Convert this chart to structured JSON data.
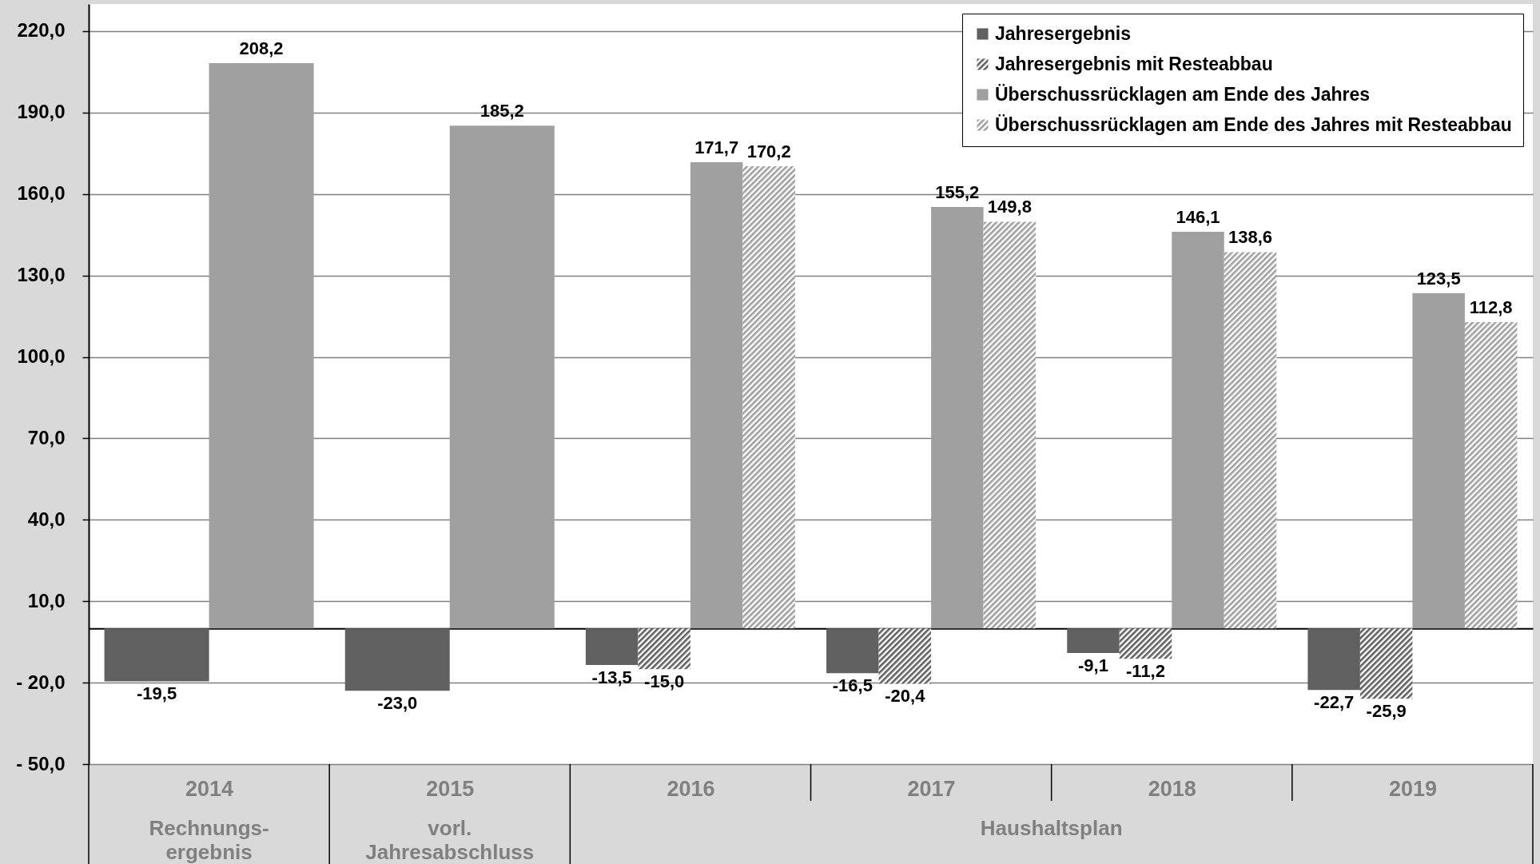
{
  "chart_data": {
    "type": "bar",
    "categories": [
      "2014",
      "2015",
      "2016",
      "2017",
      "2018",
      "2019"
    ],
    "series": [
      {
        "name": "Jahresergebnis",
        "color": "#606060",
        "values": [
          -19.5,
          -23.0,
          -13.5,
          -16.5,
          -9.1,
          -22.7
        ],
        "value_labels": [
          "-19,5",
          "-23,0",
          "-13,5",
          "-16,5",
          "-9,1",
          "-22,7"
        ]
      },
      {
        "name": "Jahresergebnis mit Resteabbau",
        "color": "#606060",
        "values": [
          null,
          null,
          -15.0,
          -20.4,
          -11.2,
          -25.9
        ],
        "value_labels": [
          null,
          null,
          "-15,0",
          "-20,4",
          "-11,2",
          "-25,9"
        ]
      },
      {
        "name": "Überschussrücklagen am Ende des Jahres",
        "color": "#a0a0a0",
        "values": [
          208.2,
          185.2,
          171.7,
          155.2,
          146.1,
          123.5
        ],
        "value_labels": [
          "208,2",
          "185,2",
          "171,7",
          "155,2",
          "146,1",
          "123,5"
        ]
      },
      {
        "name": "Überschussrücklagen am Ende des Jahres mit Resteabbau",
        "color": "#a0a0a0",
        "values": [
          null,
          null,
          170.2,
          149.8,
          138.6,
          112.8
        ],
        "value_labels": [
          null,
          null,
          "170,2",
          "149,8",
          "138,6",
          "112,8"
        ]
      }
    ],
    "ylim": [
      -50,
      230
    ],
    "yticks": [
      {
        "value": -50,
        "label": "- 50,0"
      },
      {
        "value": -20,
        "label": "- 20,0"
      },
      {
        "value": 10,
        "label": "10,0"
      },
      {
        "value": 40,
        "label": "40,0"
      },
      {
        "value": 70,
        "label": "70,0"
      },
      {
        "value": 100,
        "label": "100,0"
      },
      {
        "value": 130,
        "label": "130,0"
      },
      {
        "value": 160,
        "label": "160,0"
      },
      {
        "value": 190,
        "label": "190,0"
      },
      {
        "value": 220,
        "label": "220,0"
      }
    ],
    "grid": "y",
    "legend": "top right",
    "annotations": [
      "Rechnungs-\nergebnis",
      "vorl.\nJahresabschluss",
      "Haushaltsplan"
    ]
  }
}
